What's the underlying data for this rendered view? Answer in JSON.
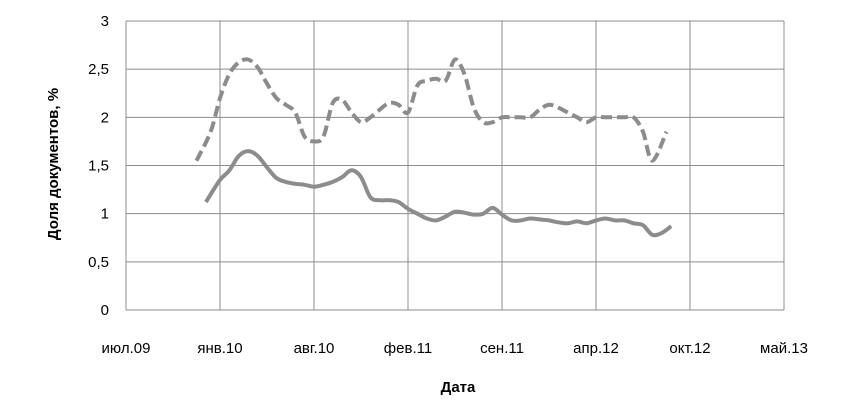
{
  "chart_data": {
    "type": "line",
    "title": "",
    "xlabel": "Дата",
    "ylabel": "Доля документов, %",
    "x_tick_labels": [
      "июл.09",
      "янв.10",
      "авг.10",
      "фев.11",
      "сен.11",
      "апр.12",
      "окт.12",
      "май.13"
    ],
    "y_tick_labels": [
      "0",
      "0,5",
      "1",
      "1,5",
      "2",
      "2,5",
      "3"
    ],
    "xlim": [
      0,
      7
    ],
    "ylim": [
      0,
      3
    ],
    "grid": true,
    "legend": "none",
    "colors": {
      "line": "#8c8c8c",
      "grid": "#8c8c8c"
    },
    "series": [
      {
        "style": "dashed",
        "x": [
          0.75,
          0.9,
          1.0,
          1.1,
          1.2,
          1.3,
          1.4,
          1.5,
          1.6,
          1.7,
          1.8,
          1.9,
          2.0,
          2.1,
          2.2,
          2.3,
          2.4,
          2.5,
          2.6,
          2.7,
          2.8,
          2.9,
          3.0,
          3.1,
          3.2,
          3.3,
          3.4,
          3.5,
          3.6,
          3.7,
          3.8,
          3.9,
          4.0,
          4.1,
          4.2,
          4.3,
          4.4,
          4.5,
          4.6,
          4.7,
          4.8,
          4.9,
          5.0,
          5.1,
          5.2,
          5.3,
          5.4,
          5.5,
          5.6,
          5.75
        ],
        "y": [
          1.55,
          1.85,
          2.2,
          2.45,
          2.57,
          2.6,
          2.52,
          2.35,
          2.2,
          2.13,
          2.05,
          1.8,
          1.75,
          1.8,
          2.15,
          2.18,
          2.05,
          1.95,
          2.0,
          2.08,
          2.15,
          2.13,
          2.05,
          2.33,
          2.38,
          2.4,
          2.38,
          2.6,
          2.45,
          2.1,
          1.95,
          1.95,
          2.0,
          2.0,
          2.0,
          2.0,
          2.08,
          2.13,
          2.1,
          2.05,
          2.0,
          1.95,
          2.0,
          2.0,
          2.0,
          2.0,
          2.0,
          1.85,
          1.55,
          1.85
        ]
      },
      {
        "style": "solid",
        "x": [
          0.85,
          0.9,
          1.0,
          1.1,
          1.2,
          1.3,
          1.4,
          1.5,
          1.6,
          1.7,
          1.8,
          1.9,
          2.0,
          2.1,
          2.2,
          2.3,
          2.4,
          2.5,
          2.6,
          2.7,
          2.8,
          2.9,
          3.0,
          3.1,
          3.2,
          3.3,
          3.4,
          3.5,
          3.6,
          3.7,
          3.8,
          3.9,
          4.0,
          4.1,
          4.2,
          4.3,
          4.4,
          4.5,
          4.6,
          4.7,
          4.8,
          4.9,
          5.0,
          5.1,
          5.2,
          5.3,
          5.4,
          5.5,
          5.6,
          5.7,
          5.8
        ],
        "y": [
          1.12,
          1.2,
          1.35,
          1.45,
          1.6,
          1.65,
          1.6,
          1.48,
          1.37,
          1.33,
          1.31,
          1.3,
          1.28,
          1.3,
          1.33,
          1.38,
          1.45,
          1.38,
          1.17,
          1.14,
          1.14,
          1.12,
          1.05,
          1.0,
          0.95,
          0.93,
          0.97,
          1.02,
          1.01,
          0.99,
          1.0,
          1.06,
          0.99,
          0.93,
          0.93,
          0.95,
          0.94,
          0.93,
          0.91,
          0.9,
          0.92,
          0.9,
          0.93,
          0.95,
          0.93,
          0.93,
          0.9,
          0.88,
          0.78,
          0.8,
          0.87
        ]
      }
    ]
  }
}
